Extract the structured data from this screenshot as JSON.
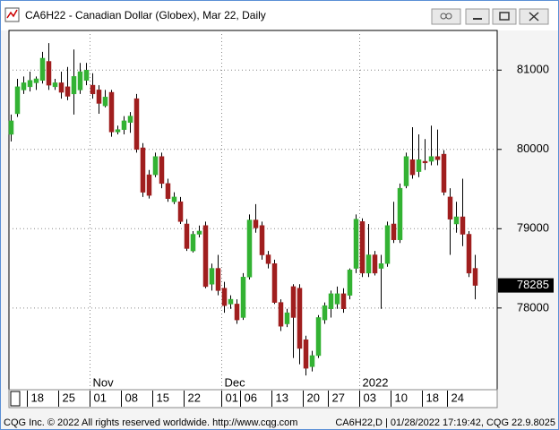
{
  "chart_data": {
    "type": "candlestick",
    "title": "CA6H22 - Canadian Dollar (Globex), Mar 22, Daily",
    "footer_left": "CQG Inc. © 2022 All rights reserved worldwide. http://www.cqg.com",
    "footer_right": "CA6H22,D | 01/28/2022 17:19:42, CQG 22.9.8025",
    "up_color": "#33b233",
    "down_color": "#a01e1e",
    "ylim": [
      76970,
      81500
    ],
    "yticks": [
      78000,
      79000,
      80000,
      81000
    ],
    "grid": true,
    "last_price": 78285,
    "categories": [
      null,
      null,
      null,
      "18",
      null,
      null,
      null,
      null,
      "25",
      null,
      null,
      null,
      null,
      "01",
      null,
      null,
      null,
      null,
      "08",
      null,
      null,
      null,
      null,
      "15",
      null,
      null,
      null,
      null,
      "22",
      null,
      null,
      null,
      null,
      null,
      "01",
      null,
      null,
      "06",
      null,
      null,
      null,
      null,
      "13",
      null,
      null,
      null,
      null,
      "20",
      null,
      null,
      null,
      "27",
      null,
      null,
      null,
      null,
      "03",
      null,
      null,
      null,
      null,
      "10",
      null,
      null,
      null,
      null,
      "18",
      null,
      null,
      null,
      "24",
      null,
      null,
      null,
      null
    ],
    "month_labels": [
      {
        "value": 13,
        "label": "Nov"
      },
      {
        "value": 34,
        "label": "Dec"
      },
      {
        "value": 56,
        "label": "2022"
      }
    ],
    "open": [
      80190,
      80450,
      80750,
      80790,
      80840,
      80870,
      81110,
      80790,
      80840,
      80790,
      80700,
      80750,
      80870,
      80810,
      80750,
      80550,
      80720,
      80220,
      80250,
      80340,
      80640,
      80020,
      79680,
      79680,
      79910,
      79570,
      79340,
      79340,
      79060,
      78720,
      78930,
      79040,
      78300,
      78500,
      78250,
      78050,
      78050,
      77880,
      78390,
      79110,
      79040,
      78670,
      78560,
      78070,
      77800,
      78270,
      78250,
      77600,
      77260,
      77400,
      77850,
      77990,
      78050,
      78180,
      78160,
      78500,
      79090,
      78440,
      78670,
      78500,
      78560,
      79060,
      78860,
      79540,
      79870,
      79720,
      79850,
      79850,
      79910,
      79940,
      79400,
      79060,
      79150,
      78930,
      78500
    ],
    "high": [
      80440,
      80890,
      80920,
      80980,
      80920,
      81230,
      81340,
      80890,
      80980,
      81040,
      81260,
      81090,
      81090,
      80960,
      80810,
      80750,
      80750,
      80300,
      80420,
      80470,
      80700,
      80080,
      79740,
      79960,
      79960,
      79630,
      79460,
      79400,
      79120,
      78970,
      79040,
      79090,
      78560,
      78670,
      78330,
      78160,
      78110,
      78440,
      79180,
      79310,
      79090,
      78720,
      78610,
      78110,
      77990,
      78300,
      78300,
      77650,
      77460,
      77910,
      78070,
      78220,
      78270,
      78250,
      78500,
      79180,
      79130,
      79060,
      78720,
      78670,
      79090,
      79340,
      79570,
      79960,
      80280,
      80190,
      80130,
      80300,
      80250,
      79990,
      79510,
      79340,
      79630,
      78970,
      78670
    ],
    "low": [
      80100,
      80410,
      80700,
      80730,
      80750,
      80830,
      80750,
      80750,
      80640,
      80620,
      80440,
      80700,
      80810,
      80640,
      80450,
      80530,
      80160,
      80190,
      80190,
      80210,
      79960,
      79400,
      79380,
      79650,
      79510,
      79340,
      79310,
      79060,
      78720,
      78700,
      78890,
      78250,
      78220,
      78160,
      77940,
      77990,
      77800,
      77850,
      78360,
      78950,
      78610,
      78500,
      78050,
      77710,
      77760,
      77370,
      77290,
      77150,
      77200,
      77370,
      77800,
      77880,
      77990,
      77940,
      78110,
      78440,
      78390,
      78390,
      78410,
      77990,
      78520,
      78820,
      78820,
      79510,
      79630,
      79650,
      79740,
      79800,
      79800,
      79420,
      78670,
      78950,
      78780,
      78390,
      78110
    ],
    "close": [
      80360,
      80790,
      80840,
      80870,
      80890,
      81150,
      80810,
      80840,
      80720,
      80670,
      80920,
      80980,
      81000,
      80700,
      80580,
      80660,
      80220,
      80250,
      80360,
      80420,
      80000,
      79460,
      79420,
      79910,
      79570,
      79380,
      79400,
      79090,
      78750,
      78930,
      78970,
      78270,
      78500,
      78220,
      78030,
      78110,
      77850,
      78390,
      79110,
      79010,
      78670,
      78560,
      78070,
      77770,
      77940,
      77880,
      77490,
      77240,
      77400,
      77880,
      78030,
      78180,
      78180,
      77990,
      78480,
      79120,
      78440,
      78670,
      78440,
      78560,
      79040,
      78860,
      79510,
      79910,
      79680,
      79870,
      79830,
      79910,
      79870,
      79460,
      79120,
      79150,
      78930,
      78440,
      78285
    ]
  }
}
